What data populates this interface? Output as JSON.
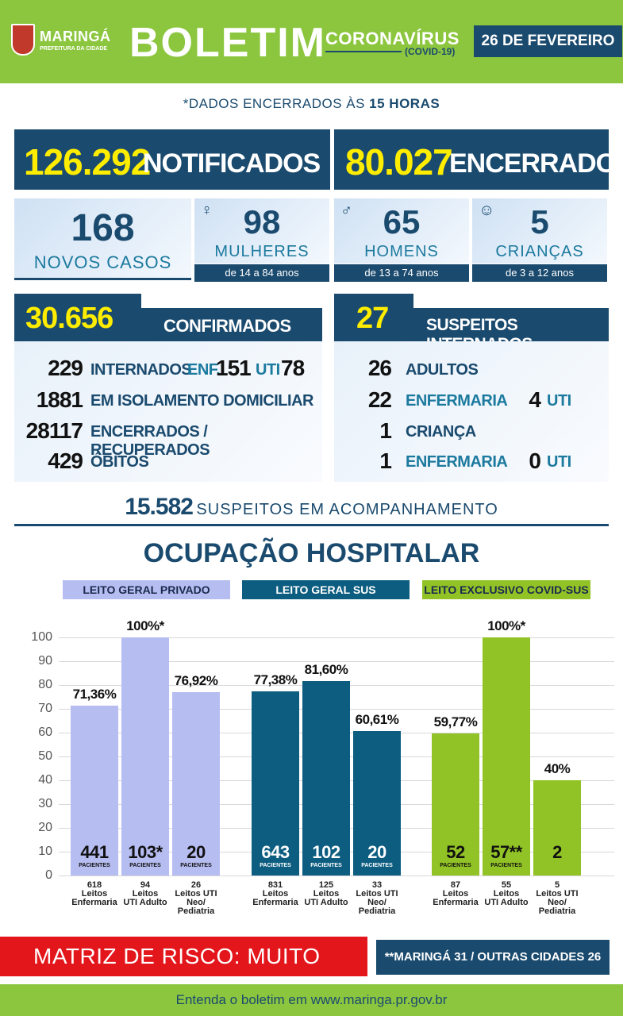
{
  "header": {
    "logo_name": "MARINGÁ",
    "logo_sub": "PREFEITURA DA CIDADE",
    "title": "BOLETIM",
    "subtitle": "CORONAVÍRUS",
    "subtitle2": "(COVID-19)",
    "date": "26 DE FEVEREIRO"
  },
  "note_prefix": "*DADOS ENCERRADOS ÀS ",
  "note_bold": "15 HORAS",
  "notificados": {
    "value": "126.292",
    "label": "NOTIFICADOS"
  },
  "encerrados": {
    "value": "80.027",
    "label": "ENCERRADOS"
  },
  "novos_casos": {
    "value": "168",
    "label": "NOVOS CASOS"
  },
  "mulheres": {
    "value": "98",
    "label": "MULHERES",
    "age": "de 14 a 84 anos",
    "icon": "woman-icon"
  },
  "homens": {
    "value": "65",
    "label": "HOMENS",
    "age": "de 13 a 74 anos",
    "icon": "man-icon"
  },
  "criancas": {
    "value": "5",
    "label": "CRIANÇAS",
    "age": "de 3 a 12 anos",
    "icon": "baby-icon"
  },
  "confirmados": {
    "value": "30.656",
    "label": "CONFIRMADOS",
    "rows": [
      {
        "n": "229",
        "l": "INTERNADOS"
      },
      {
        "n": "1881",
        "l": "EM ISOLAMENTO DOMICILIAR"
      },
      {
        "n": "28117",
        "l": "ENCERRADOS / RECUPERADOS"
      },
      {
        "n": "429",
        "l": "ÓBITOS"
      }
    ],
    "enf_label": "ENF.",
    "enf_value": "151",
    "uti_label": "UTI",
    "uti_value": "78"
  },
  "suspeitos": {
    "value": "27",
    "label": "SUSPEITOS INTERNADOS",
    "rows": [
      {
        "n": "26",
        "l": "ADULTOS"
      },
      {
        "n": "22",
        "l": "ENFERMARIA",
        "n2": "4",
        "l2": "UTI"
      },
      {
        "n": "1",
        "l": "CRIANÇA"
      },
      {
        "n": "1",
        "l": "ENFERMARIA",
        "n2": "0",
        "l2": "UTI"
      }
    ]
  },
  "acompanhamento": {
    "value": "15.582",
    "label": "SUSPEITOS EM ACOMPANHAMENTO"
  },
  "ocupacao_title": "OCUPAÇÃO HOSPITALAR",
  "pacientes_label": "PACIENTES",
  "colors": {
    "navy": "#1a4a6e",
    "green": "#8cc63f",
    "lavender": "#b6bdf0",
    "teal_bar": "#0c5d80",
    "lime_bar": "#92c326",
    "red": "#e3161b",
    "yellow": "#ffed00"
  },
  "chart_data": {
    "type": "bar",
    "ylim": [
      0,
      100
    ],
    "yticks": [
      0,
      10,
      20,
      30,
      40,
      50,
      60,
      70,
      80,
      90,
      100
    ],
    "groups": [
      {
        "name": "LEITO GERAL PRIVADO",
        "bars": [
          {
            "value": 71.36,
            "label": "71,36%",
            "patients": "441",
            "capacity": "618",
            "cat1": "Leitos",
            "cat2": "Enfermaria",
            "cat3": ""
          },
          {
            "value": 100,
            "label": "100%*",
            "patients": "103*",
            "capacity": "94",
            "cat1": "Leitos",
            "cat2": "UTI Adulto",
            "cat3": ""
          },
          {
            "value": 76.92,
            "label": "76,92%",
            "patients": "20",
            "capacity": "26",
            "cat1": "Leitos UTI",
            "cat2": "Neo/",
            "cat3": "Pediatria"
          }
        ]
      },
      {
        "name": "LEITO GERAL SUS",
        "bars": [
          {
            "value": 77.38,
            "label": "77,38%",
            "patients": "643",
            "capacity": "831",
            "cat1": "Leitos",
            "cat2": "Enfermaria",
            "cat3": ""
          },
          {
            "value": 81.6,
            "label": "81,60%",
            "patients": "102",
            "capacity": "125",
            "cat1": "Leitos",
            "cat2": "UTI Adulto",
            "cat3": ""
          },
          {
            "value": 60.61,
            "label": "60,61%",
            "patients": "20",
            "capacity": "33",
            "cat1": "Leitos UTI",
            "cat2": "Neo/",
            "cat3": "Pediatria"
          }
        ]
      },
      {
        "name": "LEITO EXCLUSIVO COVID-SUS",
        "bars": [
          {
            "value": 59.77,
            "label": "59,77%",
            "patients": "52",
            "capacity": "87",
            "cat1": "Leitos",
            "cat2": "Enfermaria",
            "cat3": ""
          },
          {
            "value": 100,
            "label": "100%*",
            "patients": "57**",
            "capacity": "55",
            "cat1": "Leitos",
            "cat2": "UTI Adulto",
            "cat3": ""
          },
          {
            "value": 40,
            "label": "40%",
            "patients": "2",
            "capacity": "5",
            "cat1": "Leitos UTI",
            "cat2": "Neo/",
            "cat3": "Pediatria"
          }
        ]
      }
    ]
  },
  "matriz": "MATRIZ DE RISCO: MUITO ALTO",
  "origem": "**MARINGÁ 31 / OUTRAS CIDADES 26",
  "footer": "Entenda o boletim em www.maringa.pr.gov.br"
}
